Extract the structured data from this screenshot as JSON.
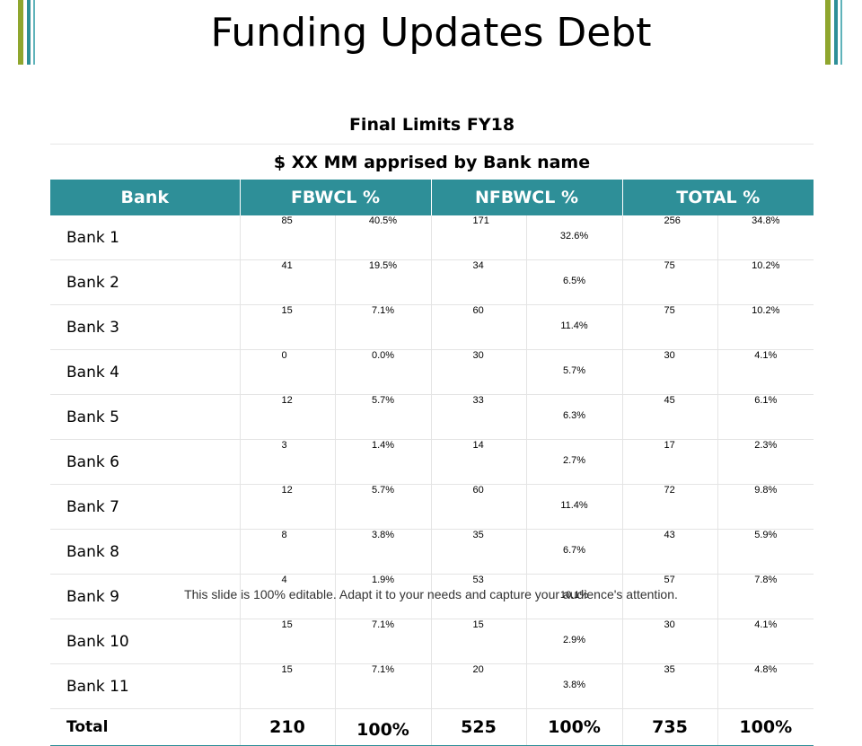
{
  "title": "Funding Updates Debt",
  "subtitle1": "Final Limits FY18",
  "subtitle2": "$ XX MM apprised by Bank name",
  "headers": [
    "Bank",
    "FBWCL %",
    "NFBWCL %",
    "TOTAL %"
  ],
  "rows": [
    {
      "bank": "Bank 1",
      "fb": "85",
      "fb_pct": "40.5%",
      "nfb": "171",
      "nfb_pct": "32.6%",
      "total": "256",
      "total_pct": "34.8%"
    },
    {
      "bank": "Bank 2",
      "fb": "41",
      "fb_pct": "19.5%",
      "nfb": "34",
      "nfb_pct": "6.5%",
      "total": "75",
      "total_pct": "10.2%"
    },
    {
      "bank": "Bank 3",
      "fb": "15",
      "fb_pct": "7.1%",
      "nfb": "60",
      "nfb_pct": "11.4%",
      "total": "75",
      "total_pct": "10.2%"
    },
    {
      "bank": "Bank 4",
      "fb": "0",
      "fb_pct": "0.0%",
      "nfb": "30",
      "nfb_pct": "5.7%",
      "total": "30",
      "total_pct": "4.1%"
    },
    {
      "bank": "Bank 5",
      "fb": "12",
      "fb_pct": "5.7%",
      "nfb": "33",
      "nfb_pct": "6.3%",
      "total": "45",
      "total_pct": "6.1%"
    },
    {
      "bank": "Bank 6",
      "fb": "3",
      "fb_pct": "1.4%",
      "nfb": "14",
      "nfb_pct": "2.7%",
      "total": "17",
      "total_pct": "2.3%"
    },
    {
      "bank": "Bank 7",
      "fb": "12",
      "fb_pct": "5.7%",
      "nfb": "60",
      "nfb_pct": "11.4%",
      "total": "72",
      "total_pct": "9.8%"
    },
    {
      "bank": "Bank 8",
      "fb": "8",
      "fb_pct": "3.8%",
      "nfb": "35",
      "nfb_pct": "6.7%",
      "total": "43",
      "total_pct": "5.9%"
    },
    {
      "bank": "Bank 9",
      "fb": "4",
      "fb_pct": "1.9%",
      "nfb": "53",
      "nfb_pct": "10.1%",
      "total": "57",
      "total_pct": "7.8%"
    },
    {
      "bank": "Bank 10",
      "fb": "15",
      "fb_pct": "7.1%",
      "nfb": "15",
      "nfb_pct": "2.9%",
      "total": "30",
      "total_pct": "4.1%"
    },
    {
      "bank": "Bank 11",
      "fb": "15",
      "fb_pct": "7.1%",
      "nfb": "20",
      "nfb_pct": "3.8%",
      "total": "35",
      "total_pct": "4.8%"
    }
  ],
  "total": {
    "label": "Total",
    "fb": "210",
    "fb_pct": "100%",
    "nfb": "525",
    "nfb_pct": "100%",
    "total": "735",
    "total_pct": "100%"
  },
  "footer": "This slide is 100% editable. Adapt it to your needs and capture your audience's attention.",
  "colors": {
    "header": "#2e8f98",
    "accent_olive": "#8fa62e",
    "accent_teal": "#2e8f98"
  }
}
